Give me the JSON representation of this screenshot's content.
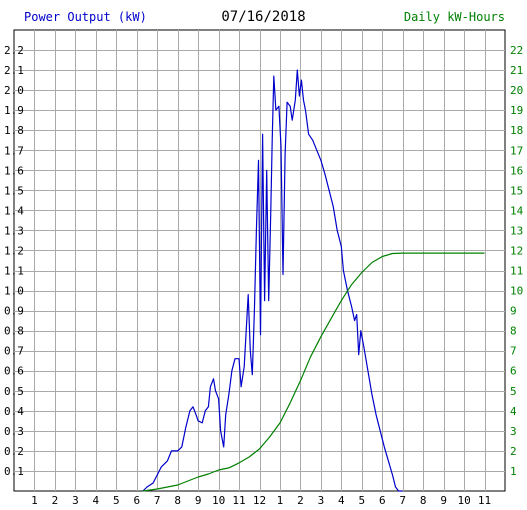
{
  "header": {
    "left_label": "Power Output (kW)",
    "date": "07/16/2018",
    "right_label": "Daily kW-Hours"
  },
  "colors": {
    "power": "#0000cc",
    "energy": "#008000",
    "grid": "#aaaaaa",
    "axis_text": "#000000"
  },
  "chart_data": {
    "type": "line",
    "title": "07/16/2018",
    "x_tick_labels": [
      "1",
      "2",
      "3",
      "4",
      "5",
      "6",
      "7",
      "8",
      "9",
      "10",
      "11",
      "12",
      "1",
      "2",
      "3",
      "4",
      "5",
      "6",
      "7",
      "8",
      "9",
      "10",
      "11"
    ],
    "x_unit": "hour of day",
    "xlim": [
      0,
      24
    ],
    "ylabel_left": "Power Output (kW)",
    "ylim_left": [
      0,
      2.3
    ],
    "yticks_left": [
      "0.1",
      "0.2",
      "0.3",
      "0.4",
      "0.5",
      "0.6",
      "0.7",
      "0.8",
      "0.9",
      "1.0",
      "1.1",
      "1.2",
      "1.3",
      "1.4",
      "1.5",
      "1.6",
      "1.7",
      "1.8",
      "1.9",
      "2.0",
      "2.1",
      "2.2"
    ],
    "ylabel_right": "Daily kW-Hours",
    "ylim_right": [
      0,
      23
    ],
    "yticks_right": [
      "1",
      "2",
      "3",
      "4",
      "5",
      "6",
      "7",
      "8",
      "9",
      "10",
      "11",
      "12",
      "13",
      "14",
      "15",
      "16",
      "17",
      "18",
      "19",
      "20",
      "21",
      "22"
    ],
    "grid": true,
    "series": [
      {
        "name": "Power Output (kW)",
        "axis": "left",
        "points": [
          [
            6.3,
            0.0
          ],
          [
            6.5,
            0.02
          ],
          [
            6.8,
            0.04
          ],
          [
            7.0,
            0.08
          ],
          [
            7.2,
            0.12
          ],
          [
            7.5,
            0.15
          ],
          [
            7.7,
            0.2
          ],
          [
            8.0,
            0.2
          ],
          [
            8.2,
            0.22
          ],
          [
            8.4,
            0.32
          ],
          [
            8.6,
            0.4
          ],
          [
            8.75,
            0.42
          ],
          [
            8.9,
            0.38
          ],
          [
            9.0,
            0.35
          ],
          [
            9.2,
            0.34
          ],
          [
            9.35,
            0.4
          ],
          [
            9.5,
            0.42
          ],
          [
            9.6,
            0.52
          ],
          [
            9.75,
            0.56
          ],
          [
            9.85,
            0.5
          ],
          [
            10.0,
            0.46
          ],
          [
            10.1,
            0.3
          ],
          [
            10.25,
            0.22
          ],
          [
            10.35,
            0.38
          ],
          [
            10.5,
            0.48
          ],
          [
            10.65,
            0.6
          ],
          [
            10.8,
            0.66
          ],
          [
            11.0,
            0.66
          ],
          [
            11.1,
            0.52
          ],
          [
            11.25,
            0.62
          ],
          [
            11.35,
            0.8
          ],
          [
            11.45,
            0.98
          ],
          [
            11.55,
            0.7
          ],
          [
            11.65,
            0.58
          ],
          [
            11.75,
            0.9
          ],
          [
            11.85,
            1.3
          ],
          [
            11.95,
            1.65
          ],
          [
            12.05,
            0.78
          ],
          [
            12.15,
            1.78
          ],
          [
            12.25,
            0.95
          ],
          [
            12.35,
            1.6
          ],
          [
            12.45,
            0.95
          ],
          [
            12.55,
            1.4
          ],
          [
            12.62,
            1.75
          ],
          [
            12.7,
            2.07
          ],
          [
            12.8,
            1.9
          ],
          [
            12.95,
            1.92
          ],
          [
            13.05,
            1.72
          ],
          [
            13.15,
            1.08
          ],
          [
            13.25,
            1.68
          ],
          [
            13.35,
            1.94
          ],
          [
            13.5,
            1.92
          ],
          [
            13.6,
            1.85
          ],
          [
            13.75,
            1.95
          ],
          [
            13.85,
            2.1
          ],
          [
            13.95,
            1.97
          ],
          [
            14.05,
            2.05
          ],
          [
            14.15,
            1.95
          ],
          [
            14.25,
            1.9
          ],
          [
            14.4,
            1.78
          ],
          [
            14.6,
            1.75
          ],
          [
            14.8,
            1.7
          ],
          [
            15.0,
            1.65
          ],
          [
            15.2,
            1.58
          ],
          [
            15.4,
            1.5
          ],
          [
            15.6,
            1.42
          ],
          [
            15.8,
            1.3
          ],
          [
            16.0,
            1.22
          ],
          [
            16.1,
            1.1
          ],
          [
            16.3,
            1.0
          ],
          [
            16.5,
            0.92
          ],
          [
            16.65,
            0.85
          ],
          [
            16.75,
            0.88
          ],
          [
            16.85,
            0.68
          ],
          [
            16.95,
            0.8
          ],
          [
            17.1,
            0.72
          ],
          [
            17.3,
            0.6
          ],
          [
            17.5,
            0.48
          ],
          [
            17.7,
            0.38
          ],
          [
            17.9,
            0.3
          ],
          [
            18.1,
            0.22
          ],
          [
            18.3,
            0.15
          ],
          [
            18.5,
            0.08
          ],
          [
            18.65,
            0.02
          ],
          [
            18.8,
            0.0
          ],
          [
            19.0,
            0.0
          ]
        ]
      },
      {
        "name": "Daily kW-Hours",
        "axis": "right",
        "points": [
          [
            6.3,
            0.0
          ],
          [
            7.0,
            0.1
          ],
          [
            7.5,
            0.2
          ],
          [
            8.0,
            0.3
          ],
          [
            8.5,
            0.5
          ],
          [
            9.0,
            0.7
          ],
          [
            9.5,
            0.85
          ],
          [
            10.0,
            1.05
          ],
          [
            10.5,
            1.15
          ],
          [
            11.0,
            1.4
          ],
          [
            11.5,
            1.7
          ],
          [
            12.0,
            2.1
          ],
          [
            12.5,
            2.7
          ],
          [
            13.0,
            3.4
          ],
          [
            13.5,
            4.4
          ],
          [
            14.0,
            5.5
          ],
          [
            14.5,
            6.7
          ],
          [
            15.0,
            7.7
          ],
          [
            15.5,
            8.6
          ],
          [
            16.0,
            9.5
          ],
          [
            16.5,
            10.3
          ],
          [
            17.0,
            10.9
          ],
          [
            17.5,
            11.4
          ],
          [
            18.0,
            11.7
          ],
          [
            18.5,
            11.85
          ],
          [
            19.0,
            11.87
          ],
          [
            21.0,
            11.87
          ],
          [
            23.0,
            11.87
          ]
        ]
      }
    ]
  }
}
